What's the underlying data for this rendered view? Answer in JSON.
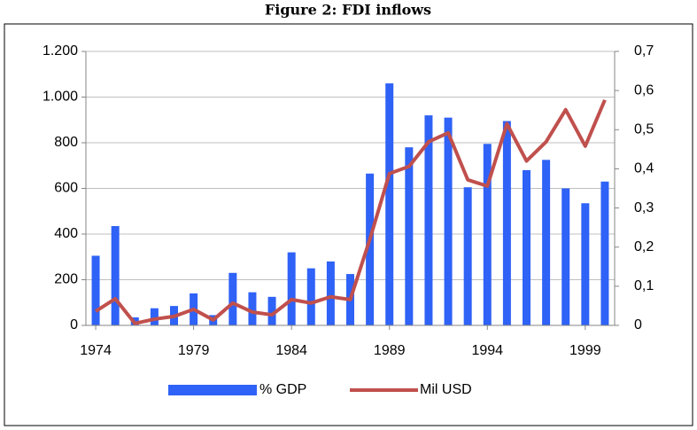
{
  "chart_data": {
    "type": "combo",
    "title": "Figure 2: FDI inflows",
    "categories": [
      1974,
      null,
      null,
      null,
      null,
      1979,
      null,
      null,
      null,
      null,
      1984,
      null,
      null,
      null,
      null,
      1989,
      null,
      null,
      null,
      null,
      1994,
      null,
      null,
      null,
      null,
      1999,
      null
    ],
    "series": [
      {
        "name": "% GDP",
        "type": "bar",
        "color": "#2f62f6",
        "axis": "y",
        "values": [
          305,
          435,
          35,
          75,
          85,
          140,
          45,
          230,
          145,
          125,
          320,
          250,
          280,
          225,
          665,
          1060,
          780,
          920,
          910,
          605,
          795,
          895,
          680,
          725,
          600,
          535,
          630
        ]
      },
      {
        "name": "Mil USD",
        "type": "line",
        "color": "#c0504d",
        "axis": "y2",
        "values": [
          0.036,
          0.068,
          0.005,
          0.016,
          0.023,
          0.041,
          0.014,
          0.057,
          0.034,
          0.027,
          0.066,
          0.057,
          0.073,
          0.066,
          0.22,
          0.388,
          0.406,
          0.469,
          0.492,
          0.372,
          0.356,
          0.515,
          0.42,
          0.469,
          0.551,
          0.458,
          0.576
        ]
      }
    ],
    "ylim": [
      0,
      1200
    ],
    "yticks": [
      0,
      200,
      400,
      600,
      800,
      {
        "value": 1000,
        "label": "1.000"
      },
      {
        "value": 1200,
        "label": "1.200"
      }
    ],
    "y2lim": [
      0,
      0.7
    ],
    "y2ticks": [
      0,
      {
        "value": 0.1,
        "label": "0,1"
      },
      {
        "value": 0.2,
        "label": "0,2"
      },
      {
        "value": 0.3,
        "label": "0,3"
      },
      {
        "value": 0.4,
        "label": "0,4"
      },
      {
        "value": 0.5,
        "label": "0,5"
      },
      {
        "value": 0.6,
        "label": "0,6"
      },
      {
        "value": 0.7,
        "label": "0,7"
      }
    ],
    "grid": true,
    "legend": "bottom"
  }
}
